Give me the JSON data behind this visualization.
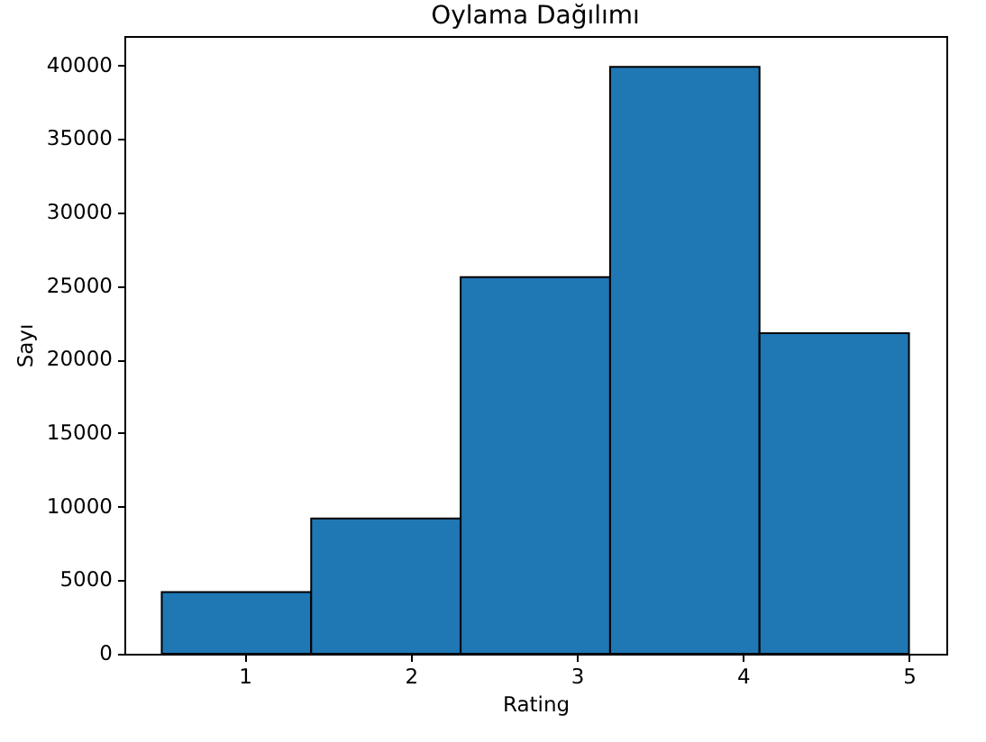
{
  "chart_data": {
    "type": "histogram",
    "title": "Oylama Dağılımı",
    "xlabel": "Rating",
    "ylabel": "Sayı",
    "bins": [
      0.5,
      1.4,
      2.3,
      3.2,
      4.1,
      5.0
    ],
    "values": [
      4200,
      9200,
      25600,
      39900,
      21800
    ],
    "color": "#1f77b4",
    "xlim": [
      0.275,
      5.225
    ],
    "xticks": [
      1,
      2,
      3,
      4,
      5
    ],
    "ylim": [
      0,
      42000
    ],
    "yticks": [
      0,
      5000,
      10000,
      15000,
      20000,
      25000,
      30000,
      35000,
      40000
    ],
    "grid": false
  }
}
